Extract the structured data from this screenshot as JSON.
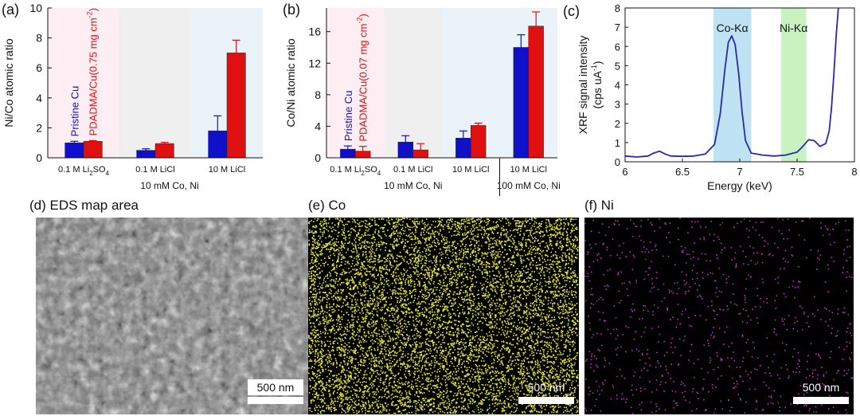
{
  "chart_data": [
    {
      "panel": "(a)",
      "type": "bar",
      "ylabel": "Ni/Co atomic ratio",
      "ylim": [
        0,
        10
      ],
      "yticks": [
        0,
        2,
        4,
        6,
        8,
        10
      ],
      "groups": [
        {
          "label": "0.1 M Li",
          "sub": "2",
          "mid": "SO",
          "sub2": "4",
          "values": [
            1.0,
            1.1
          ],
          "errors": [
            0.1,
            0.05
          ],
          "shade": "#fdeef3"
        },
        {
          "label": "0.1 M LiCl",
          "values": [
            0.5,
            0.95
          ],
          "errors": [
            0.1,
            0.08
          ],
          "shade": "#efefef"
        },
        {
          "label": "10 M LiCl",
          "values": [
            1.8,
            7.0
          ],
          "errors": [
            1.0,
            0.85
          ],
          "shade": "#eaf4f8"
        }
      ],
      "series": [
        {
          "name": "Pristine Cu",
          "color": "#1010c8"
        },
        {
          "name": "PDADMA/Cu(0.75 mg cm",
          "sup": "-2",
          "tail": ")",
          "color": "#e01010"
        }
      ],
      "group_caption": "10 mM Co, Ni"
    },
    {
      "panel": "(b)",
      "type": "bar",
      "ylabel": "Co/Ni atomic ratio",
      "ylim": [
        0,
        19
      ],
      "yticks": [
        0,
        4,
        8,
        12,
        16
      ],
      "groups": [
        {
          "label": "0.1 M Li",
          "sub": "2",
          "mid": "SO",
          "sub2": "4",
          "values": [
            1.1,
            0.85
          ],
          "errors": [
            0.4,
            0.6
          ],
          "shade": "#fdeef3"
        },
        {
          "label": "0.1 M LiCl",
          "values": [
            2.0,
            1.0
          ],
          "errors": [
            0.8,
            0.8
          ],
          "shade": "#efefef"
        },
        {
          "label": "10 M LiCl",
          "values": [
            2.5,
            4.1
          ],
          "errors": [
            0.9,
            0.3
          ],
          "shade": "#eaf4f8"
        },
        {
          "label": "10 M LiCl",
          "values": [
            14.0,
            16.7
          ],
          "errors": [
            1.6,
            1.8
          ],
          "shade": "#eaf4f8"
        }
      ],
      "series": [
        {
          "name": "Pristine Cu",
          "color": "#1010c8"
        },
        {
          "name": "PDADMA/Cu(0.07 mg cm",
          "sup": "-2",
          "tail": ")",
          "color": "#e01010"
        }
      ],
      "group_captions": [
        "10 mM Co, Ni",
        "100 mM Co, Ni"
      ]
    },
    {
      "panel": "(c)",
      "type": "line",
      "xlabel": "Energy (keV)",
      "ylabel": "XRF signal intensity",
      "ylabel2": "(cps uA",
      "ylabel2_sup": "-1",
      "ylabel2_tail": ")",
      "xlim": [
        6,
        8
      ],
      "ylim": [
        0,
        8
      ],
      "xticks": [
        6,
        6.5,
        7,
        7.5,
        8
      ],
      "yticks": [
        0,
        1,
        2,
        3,
        4,
        5,
        6,
        7,
        8
      ],
      "bands": [
        {
          "name": "Co-Kα",
          "x0": 6.77,
          "x1": 7.1,
          "color": "#bfe3f4"
        },
        {
          "name": "Ni-Kα",
          "x0": 7.36,
          "x1": 7.58,
          "color": "#c8f2c0"
        }
      ],
      "series": [
        {
          "color": "#2828b0",
          "x": [
            6.0,
            6.1,
            6.2,
            6.25,
            6.3,
            6.35,
            6.4,
            6.5,
            6.6,
            6.7,
            6.78,
            6.83,
            6.87,
            6.9,
            6.93,
            6.96,
            6.99,
            7.02,
            7.05,
            7.1,
            7.2,
            7.3,
            7.4,
            7.5,
            7.55,
            7.6,
            7.65,
            7.7,
            7.75,
            7.78,
            7.8,
            7.82,
            7.84,
            7.86
          ],
          "y": [
            0.3,
            0.25,
            0.3,
            0.45,
            0.55,
            0.4,
            0.3,
            0.28,
            0.3,
            0.4,
            0.9,
            2.5,
            4.8,
            6.2,
            6.55,
            6.1,
            4.6,
            2.6,
            1.1,
            0.45,
            0.35,
            0.3,
            0.35,
            0.5,
            0.8,
            1.15,
            1.1,
            0.8,
            0.95,
            1.6,
            2.8,
            4.5,
            6.5,
            8.0
          ]
        }
      ]
    }
  ],
  "images": [
    {
      "panel": "(d)",
      "title": "EDS map area",
      "scalebar": "500 nm",
      "kind": "sem"
    },
    {
      "panel": "(e)",
      "title": "Co",
      "scalebar": "500 nm",
      "kind": "dots",
      "dot_color": "#e8e83a",
      "density": 9000
    },
    {
      "panel": "(f)",
      "title": "Ni",
      "scalebar": "500 nm",
      "kind": "dots",
      "dot_color": "#c030c0",
      "density": 900
    }
  ]
}
